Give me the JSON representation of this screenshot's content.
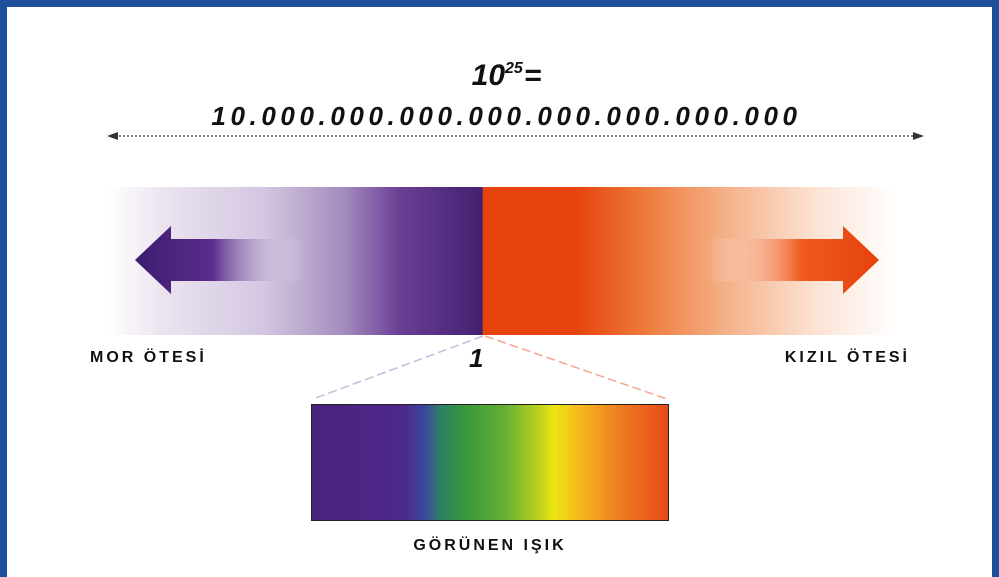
{
  "header": {
    "base": "10",
    "exponent": "25",
    "equals": "=",
    "number": "10.000.000.000.000.000.000.000.000"
  },
  "spectrum": {
    "left_label": "MOR ÖTESİ",
    "right_label": "KIZIL ÖTESİ",
    "center_label": "1"
  },
  "visible": {
    "label": "GÖRÜNEN IŞIK"
  },
  "colors": {
    "frame": "#1e4f9c",
    "ultraviolet": "#43206f",
    "infrared": "#e6420e"
  },
  "icons": {
    "left_arrow": "arrow-left-icon",
    "right_arrow": "arrow-right-icon"
  }
}
